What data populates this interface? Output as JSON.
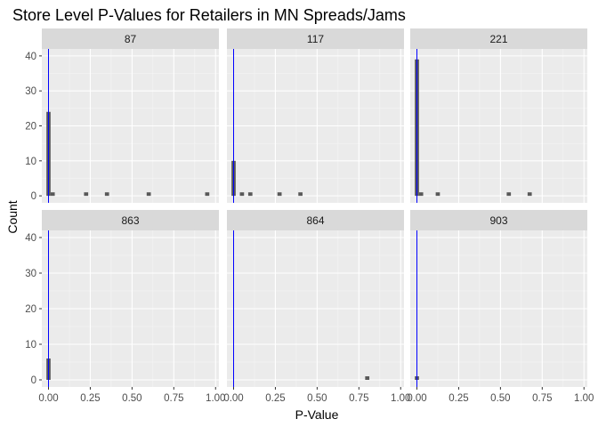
{
  "chart_data": {
    "type": "bar",
    "title": "Store Level P-Values for Retailers in MN Spreads/Jams",
    "xlabel": "P-Value",
    "ylabel": "Count",
    "xlim": [
      -0.04,
      1.02
    ],
    "ylim": [
      -2,
      42
    ],
    "x_ticks": [
      0.0,
      0.25,
      0.5,
      0.75,
      1.0
    ],
    "x_tick_labels": [
      "0.00",
      "0.25",
      "0.50",
      "0.75",
      "1.00"
    ],
    "y_ticks": [
      0,
      10,
      20,
      30,
      40
    ],
    "y_tick_labels": [
      "0",
      "10",
      "20",
      "30",
      "40"
    ],
    "bin_width": 0.025,
    "reference_line": {
      "x": 0.0,
      "color": "#0000FF"
    },
    "bar_color": "#595959",
    "grid": true,
    "panels": [
      {
        "label": "87",
        "bins": [
          {
            "x": 0.0,
            "count": 24
          },
          {
            "x": 0.025,
            "count": 1
          },
          {
            "x": 0.225,
            "count": 1
          },
          {
            "x": 0.35,
            "count": 1
          },
          {
            "x": 0.6,
            "count": 1
          },
          {
            "x": 0.95,
            "count": 1
          }
        ]
      },
      {
        "label": "117",
        "bins": [
          {
            "x": 0.0,
            "count": 10
          },
          {
            "x": 0.05,
            "count": 1
          },
          {
            "x": 0.1,
            "count": 1
          },
          {
            "x": 0.275,
            "count": 1
          },
          {
            "x": 0.4,
            "count": 1
          }
        ]
      },
      {
        "label": "221",
        "bins": [
          {
            "x": 0.0,
            "count": 39
          },
          {
            "x": 0.025,
            "count": 1
          },
          {
            "x": 0.125,
            "count": 1
          },
          {
            "x": 0.55,
            "count": 1
          },
          {
            "x": 0.675,
            "count": 1
          }
        ]
      },
      {
        "label": "863",
        "bins": [
          {
            "x": 0.0,
            "count": 6
          }
        ]
      },
      {
        "label": "864",
        "bins": [
          {
            "x": 0.8,
            "count": 1
          }
        ]
      },
      {
        "label": "903",
        "bins": [
          {
            "x": 0.0,
            "count": 1
          }
        ]
      }
    ]
  }
}
